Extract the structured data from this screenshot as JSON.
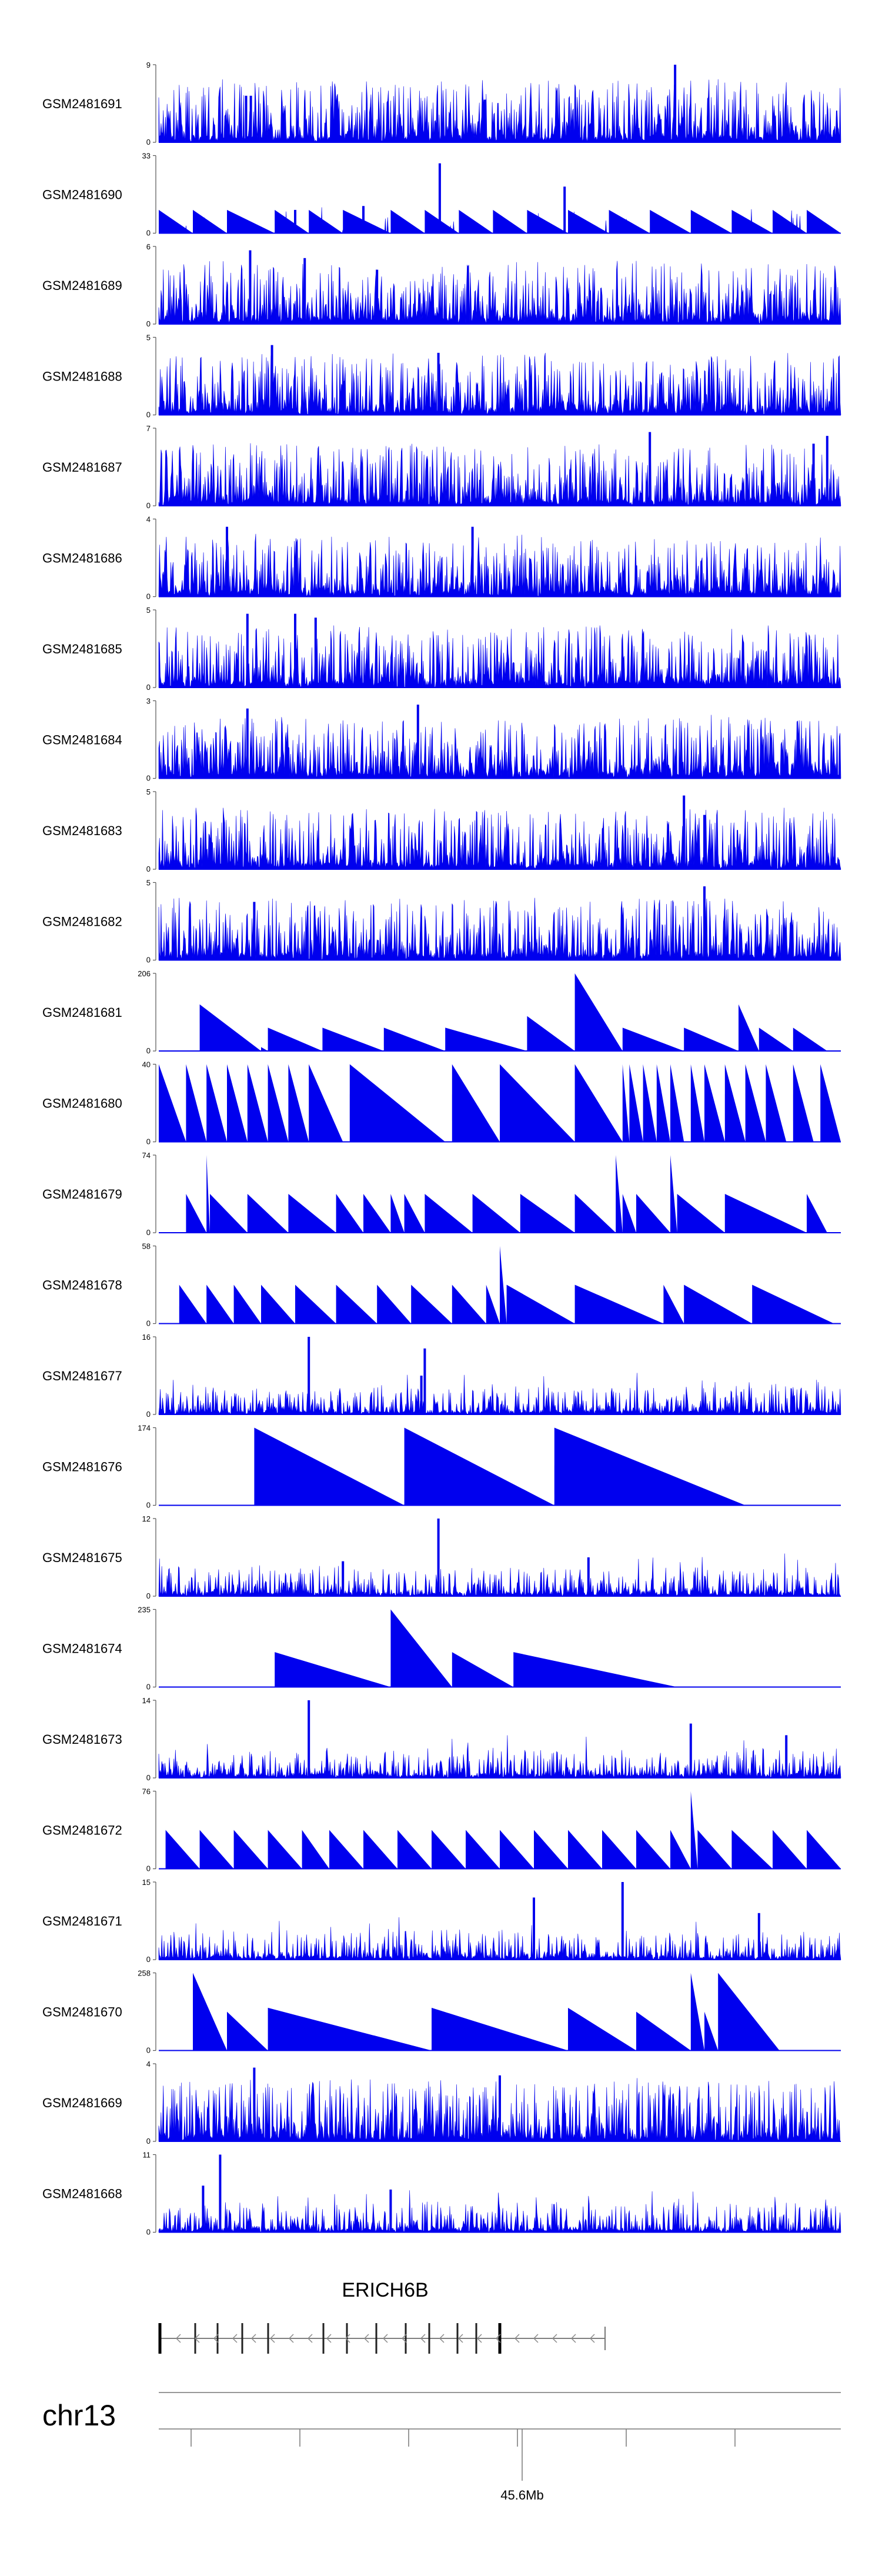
{
  "chart_data": {
    "type": "area",
    "description_type": "genome-browser coverage tracks",
    "track_color": "#0000ee",
    "tracks": [
      {
        "name": "GSM2481691",
        "ymax": "9",
        "ymin": "0",
        "style": "dense",
        "seed": 11,
        "peaks": [
          [
            0.128,
            0.6
          ],
          [
            0.135,
            0.6
          ],
          [
            0.757,
            1.0
          ],
          [
            0.478,
            0.55
          ]
        ]
      },
      {
        "name": "GSM2481690",
        "ymax": "33",
        "ymin": "0",
        "style": "mixed",
        "seed": 12,
        "tri": [
          [
            0.0,
            0.05
          ],
          [
            0.05,
            0.1
          ],
          [
            0.1,
            0.17
          ],
          [
            0.17,
            0.22
          ],
          [
            0.22,
            0.27
          ],
          [
            0.27,
            0.34
          ],
          [
            0.34,
            0.39
          ],
          [
            0.39,
            0.44
          ],
          [
            0.44,
            0.49
          ],
          [
            0.49,
            0.54
          ],
          [
            0.54,
            0.6
          ],
          [
            0.6,
            0.66
          ],
          [
            0.66,
            0.72
          ],
          [
            0.72,
            0.78
          ],
          [
            0.78,
            0.84
          ],
          [
            0.84,
            0.9
          ],
          [
            0.9,
            0.95
          ],
          [
            0.95,
            1.0
          ]
        ],
        "triH": 0.3,
        "peaks": [
          [
            0.412,
            0.9
          ],
          [
            0.595,
            0.6
          ],
          [
            0.2,
            0.3
          ],
          [
            0.3,
            0.35
          ]
        ]
      },
      {
        "name": "GSM2481689",
        "ymax": "6",
        "ymin": "0",
        "style": "dense",
        "seed": 13,
        "peaks": [
          [
            0.134,
            0.95
          ],
          [
            0.214,
            0.85
          ],
          [
            0.32,
            0.7
          ]
        ]
      },
      {
        "name": "GSM2481688",
        "ymax": "5",
        "ymin": "0",
        "style": "dense",
        "seed": 14,
        "peaks": [
          [
            0.166,
            0.9
          ],
          [
            0.41,
            0.8
          ]
        ]
      },
      {
        "name": "GSM2481687",
        "ymax": "7",
        "ymin": "0",
        "style": "dense",
        "seed": 15,
        "peaks": [
          [
            0.72,
            0.95
          ],
          [
            0.98,
            0.9
          ],
          [
            0.96,
            0.8
          ]
        ]
      },
      {
        "name": "GSM2481686",
        "ymax": "4",
        "ymin": "0",
        "style": "dense",
        "seed": 16,
        "peaks": [
          [
            0.1,
            0.9
          ],
          [
            0.46,
            0.9
          ]
        ]
      },
      {
        "name": "GSM2481685",
        "ymax": "5",
        "ymin": "0",
        "style": "dense",
        "seed": 17,
        "peaks": [
          [
            0.13,
            0.95
          ],
          [
            0.2,
            0.95
          ],
          [
            0.23,
            0.9
          ]
        ]
      },
      {
        "name": "GSM2481684",
        "ymax": "3",
        "ymin": "0",
        "style": "dense",
        "seed": 18,
        "peaks": [
          [
            0.38,
            0.95
          ],
          [
            0.13,
            0.9
          ]
        ]
      },
      {
        "name": "GSM2481683",
        "ymax": "5",
        "ymin": "0",
        "style": "dense",
        "seed": 19,
        "peaks": [
          [
            0.77,
            0.95
          ],
          [
            0.8,
            0.7
          ]
        ]
      },
      {
        "name": "GSM2481682",
        "ymax": "5",
        "ymin": "0",
        "style": "dense",
        "seed": 20,
        "peaks": [
          [
            0.8,
            0.95
          ],
          [
            0.14,
            0.75
          ]
        ]
      },
      {
        "name": "GSM2481681",
        "ymax": "206",
        "ymin": "0",
        "style": "tri",
        "tri": [
          [
            0.06,
            0.15,
            0.6
          ],
          [
            0.15,
            0.16,
            0.05
          ],
          [
            0.16,
            0.24,
            0.3
          ],
          [
            0.24,
            0.33,
            0.3
          ],
          [
            0.33,
            0.42,
            0.3
          ],
          [
            0.42,
            0.54,
            0.3
          ],
          [
            0.54,
            0.61,
            0.45
          ],
          [
            0.61,
            0.68,
            1.0
          ],
          [
            0.68,
            0.77,
            0.3
          ],
          [
            0.77,
            0.85,
            0.3
          ],
          [
            0.85,
            0.88,
            0.6
          ],
          [
            0.88,
            0.93,
            0.3
          ],
          [
            0.93,
            0.98,
            0.3
          ]
        ]
      },
      {
        "name": "GSM2481680",
        "ymax": "40",
        "ymin": "0",
        "style": "tri",
        "tri": [
          [
            0.0,
            0.04,
            1.0
          ],
          [
            0.04,
            0.07,
            1.0
          ],
          [
            0.07,
            0.1,
            1.0
          ],
          [
            0.1,
            0.13,
            1.0
          ],
          [
            0.13,
            0.16,
            1.0
          ],
          [
            0.16,
            0.19,
            1.0
          ],
          [
            0.19,
            0.22,
            1.0
          ],
          [
            0.22,
            0.27,
            1.0
          ],
          [
            0.28,
            0.42,
            1.0
          ],
          [
            0.43,
            0.5,
            1.0
          ],
          [
            0.5,
            0.61,
            1.0
          ],
          [
            0.61,
            0.68,
            1.0
          ],
          [
            0.68,
            0.69,
            1.0
          ],
          [
            0.69,
            0.71,
            1.0
          ],
          [
            0.71,
            0.73,
            1.0
          ],
          [
            0.73,
            0.75,
            1.0
          ],
          [
            0.75,
            0.77,
            1.0
          ],
          [
            0.78,
            0.8,
            1.0
          ],
          [
            0.8,
            0.83,
            1.0
          ],
          [
            0.83,
            0.86,
            1.0
          ],
          [
            0.86,
            0.89,
            1.0
          ],
          [
            0.89,
            0.92,
            1.0
          ],
          [
            0.93,
            0.96,
            1.0
          ],
          [
            0.97,
            1.0,
            1.0
          ]
        ]
      },
      {
        "name": "GSM2481679",
        "ymax": "74",
        "ymin": "0",
        "style": "tri",
        "tri": [
          [
            0.04,
            0.07,
            0.5
          ],
          [
            0.07,
            0.075,
            1.0
          ],
          [
            0.075,
            0.13,
            0.5
          ],
          [
            0.13,
            0.19,
            0.5
          ],
          [
            0.19,
            0.26,
            0.5
          ],
          [
            0.26,
            0.3,
            0.5
          ],
          [
            0.3,
            0.34,
            0.5
          ],
          [
            0.34,
            0.36,
            0.5
          ],
          [
            0.36,
            0.39,
            0.5
          ],
          [
            0.39,
            0.46,
            0.5
          ],
          [
            0.46,
            0.53,
            0.5
          ],
          [
            0.53,
            0.61,
            0.5
          ],
          [
            0.61,
            0.67,
            0.5
          ],
          [
            0.67,
            0.68,
            1.0
          ],
          [
            0.68,
            0.7,
            0.5
          ],
          [
            0.7,
            0.75,
            0.5
          ],
          [
            0.75,
            0.76,
            1.0
          ],
          [
            0.76,
            0.83,
            0.5
          ],
          [
            0.83,
            0.95,
            0.5
          ],
          [
            0.95,
            0.98,
            0.5
          ]
        ]
      },
      {
        "name": "GSM2481678",
        "ymax": "58",
        "ymin": "0",
        "style": "tri",
        "tri": [
          [
            0.03,
            0.07,
            0.5
          ],
          [
            0.07,
            0.11,
            0.5
          ],
          [
            0.11,
            0.15,
            0.5
          ],
          [
            0.15,
            0.2,
            0.5
          ],
          [
            0.2,
            0.26,
            0.5
          ],
          [
            0.26,
            0.32,
            0.5
          ],
          [
            0.32,
            0.37,
            0.5
          ],
          [
            0.37,
            0.43,
            0.5
          ],
          [
            0.43,
            0.48,
            0.5
          ],
          [
            0.48,
            0.5,
            0.5
          ],
          [
            0.5,
            0.51,
            1.0
          ],
          [
            0.51,
            0.61,
            0.5
          ],
          [
            0.61,
            0.74,
            0.5
          ],
          [
            0.74,
            0.77,
            0.5
          ],
          [
            0.77,
            0.87,
            0.5
          ],
          [
            0.87,
            0.99,
            0.5
          ]
        ]
      },
      {
        "name": "GSM2481677",
        "ymax": "16",
        "ymin": "0",
        "style": "sparse",
        "seed": 21,
        "peaks": [
          [
            0.22,
            1.0
          ],
          [
            0.39,
            0.85
          ],
          [
            0.385,
            0.5
          ]
        ]
      },
      {
        "name": "GSM2481676",
        "ymax": "174",
        "ymin": "0",
        "style": "tri",
        "tri": [
          [
            0.14,
            0.36,
            1.0
          ],
          [
            0.36,
            0.58,
            1.0
          ],
          [
            0.58,
            0.86,
            1.0
          ]
        ]
      },
      {
        "name": "GSM2481675",
        "ymax": "12",
        "ymin": "0",
        "style": "sparse",
        "seed": 22,
        "peaks": [
          [
            0.41,
            1.0
          ],
          [
            0.27,
            0.45
          ],
          [
            0.63,
            0.5
          ]
        ]
      },
      {
        "name": "GSM2481674",
        "ymax": "235",
        "ymin": "0",
        "style": "tri",
        "tri": [
          [
            0.17,
            0.34,
            0.45
          ],
          [
            0.34,
            0.43,
            1.0
          ],
          [
            0.43,
            0.52,
            0.45
          ],
          [
            0.52,
            0.76,
            0.45
          ]
        ]
      },
      {
        "name": "GSM2481673",
        "ymax": "14",
        "ymin": "0",
        "style": "sparse",
        "seed": 23,
        "peaks": [
          [
            0.22,
            1.0
          ],
          [
            0.78,
            0.7
          ],
          [
            0.92,
            0.55
          ]
        ]
      },
      {
        "name": "GSM2481672",
        "ymax": "76",
        "ymin": "0",
        "style": "tri",
        "tri": [
          [
            0.01,
            0.06,
            0.5
          ],
          [
            0.06,
            0.11,
            0.5
          ],
          [
            0.11,
            0.16,
            0.5
          ],
          [
            0.16,
            0.21,
            0.5
          ],
          [
            0.21,
            0.25,
            0.5
          ],
          [
            0.25,
            0.3,
            0.5
          ],
          [
            0.3,
            0.35,
            0.5
          ],
          [
            0.35,
            0.4,
            0.5
          ],
          [
            0.4,
            0.45,
            0.5
          ],
          [
            0.45,
            0.5,
            0.5
          ],
          [
            0.5,
            0.55,
            0.5
          ],
          [
            0.55,
            0.6,
            0.5
          ],
          [
            0.6,
            0.65,
            0.5
          ],
          [
            0.65,
            0.7,
            0.5
          ],
          [
            0.7,
            0.75,
            0.5
          ],
          [
            0.75,
            0.78,
            0.5
          ],
          [
            0.78,
            0.79,
            1.0
          ],
          [
            0.79,
            0.84,
            0.5
          ],
          [
            0.84,
            0.9,
            0.5
          ],
          [
            0.9,
            0.95,
            0.5
          ],
          [
            0.95,
            1.0,
            0.5
          ]
        ]
      },
      {
        "name": "GSM2481671",
        "ymax": "15",
        "ymin": "0",
        "style": "sparse",
        "seed": 24,
        "peaks": [
          [
            0.68,
            1.0
          ],
          [
            0.55,
            0.8
          ],
          [
            0.88,
            0.6
          ]
        ]
      },
      {
        "name": "GSM2481670",
        "ymax": "258",
        "ymin": "0",
        "style": "tri",
        "tri": [
          [
            0.05,
            0.1,
            1.0
          ],
          [
            0.1,
            0.16,
            0.5
          ],
          [
            0.16,
            0.4,
            0.55
          ],
          [
            0.4,
            0.6,
            0.55
          ],
          [
            0.6,
            0.7,
            0.55
          ],
          [
            0.7,
            0.78,
            0.5
          ],
          [
            0.78,
            0.8,
            1.0
          ],
          [
            0.8,
            0.82,
            0.5
          ],
          [
            0.82,
            0.91,
            1.0
          ]
        ]
      },
      {
        "name": "GSM2481669",
        "ymax": "4",
        "ymin": "0",
        "style": "dense",
        "seed": 25,
        "peaks": [
          [
            0.14,
            0.95
          ],
          [
            0.5,
            0.85
          ]
        ]
      },
      {
        "name": "GSM2481668",
        "ymax": "11",
        "ymin": "0",
        "style": "sparse",
        "seed": 26,
        "peaks": [
          [
            0.09,
            1.0
          ],
          [
            0.065,
            0.6
          ],
          [
            0.34,
            0.55
          ]
        ]
      }
    ],
    "gene": {
      "label": "ERICH6B",
      "strand": "minus"
    },
    "chromosome": "chr13",
    "axis_tick_label": "45.6Mb"
  }
}
